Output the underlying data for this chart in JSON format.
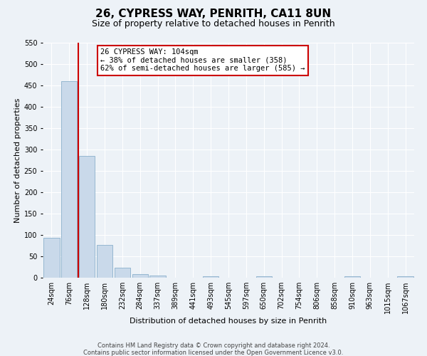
{
  "title": "26, CYPRESS WAY, PENRITH, CA11 8UN",
  "subtitle": "Size of property relative to detached houses in Penrith",
  "xlabel": "Distribution of detached houses by size in Penrith",
  "ylabel": "Number of detached properties",
  "bin_labels": [
    "24sqm",
    "76sqm",
    "128sqm",
    "180sqm",
    "232sqm",
    "284sqm",
    "337sqm",
    "389sqm",
    "441sqm",
    "493sqm",
    "545sqm",
    "597sqm",
    "650sqm",
    "702sqm",
    "754sqm",
    "806sqm",
    "858sqm",
    "910sqm",
    "963sqm",
    "1015sqm",
    "1067sqm"
  ],
  "bar_values": [
    93,
    460,
    285,
    76,
    23,
    9,
    5,
    0,
    0,
    4,
    0,
    0,
    4,
    0,
    0,
    0,
    0,
    4,
    0,
    0,
    4
  ],
  "bar_color": "#c9d9ea",
  "bar_edge_color": "#8ab0cc",
  "vline_color": "#cc0000",
  "ylim": [
    0,
    550
  ],
  "yticks": [
    0,
    50,
    100,
    150,
    200,
    250,
    300,
    350,
    400,
    450,
    500,
    550
  ],
  "annotation_title": "26 CYPRESS WAY: 104sqm",
  "annotation_line1": "← 38% of detached houses are smaller (358)",
  "annotation_line2": "62% of semi-detached houses are larger (585) →",
  "annotation_box_color": "#ffffff",
  "annotation_box_edge": "#cc0000",
  "footer_line1": "Contains HM Land Registry data © Crown copyright and database right 2024.",
  "footer_line2": "Contains public sector information licensed under the Open Government Licence v3.0.",
  "background_color": "#edf2f7",
  "grid_color": "#ffffff",
  "title_fontsize": 11,
  "subtitle_fontsize": 9,
  "ylabel_fontsize": 8,
  "xlabel_fontsize": 8,
  "tick_fontsize": 7,
  "footer_fontsize": 6,
  "ann_fontsize": 7.5
}
